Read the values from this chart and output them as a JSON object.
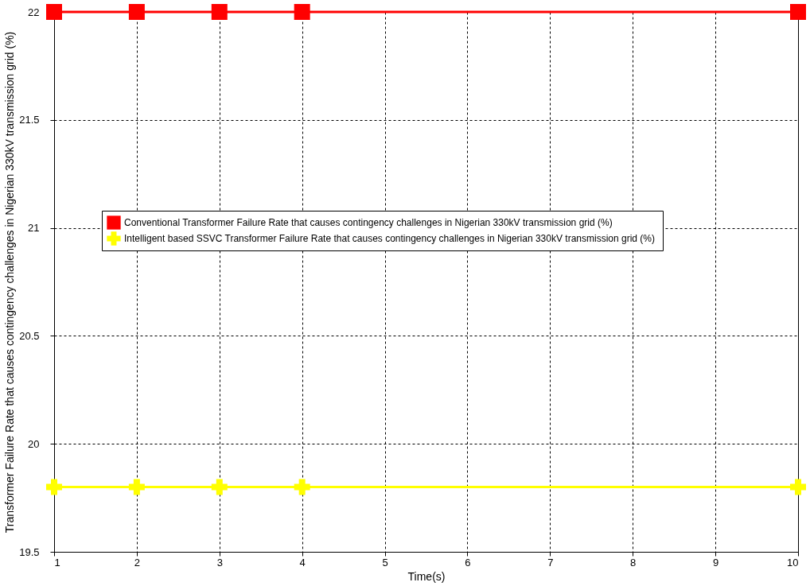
{
  "chart_data": {
    "type": "line",
    "xlabel": "Time(s)",
    "ylabel": "Transformer Failure Rate  that causes contingency challenges in Nigerian 330kV transmission grid (%)",
    "x": [
      1,
      2,
      3,
      4,
      10
    ],
    "series": [
      {
        "name": "Conventional Transformer Failure Rate  that causes contingency challenges in Nigerian 330kV transmission grid (%)",
        "color": "#ff0000",
        "marker": "square",
        "values": [
          22,
          22,
          22,
          22,
          22
        ]
      },
      {
        "name": "Intelligent based SSVC Transformer Failure Rate  that causes contingency challenges in Nigerian 330kV transmission grid (%)",
        "color": "#ffff00",
        "marker": "cross",
        "values": [
          19.8,
          19.8,
          19.8,
          19.8,
          19.8
        ]
      }
    ],
    "xlim": [
      1,
      10
    ],
    "xticks": [
      1,
      2,
      3,
      4,
      5,
      6,
      7,
      8,
      9,
      10
    ],
    "ylim": [
      19.5,
      22
    ],
    "yticks": [
      19.5,
      20,
      20.5,
      21,
      21.5,
      22
    ],
    "grid": true,
    "legend": "left",
    "line_style": "solid"
  }
}
